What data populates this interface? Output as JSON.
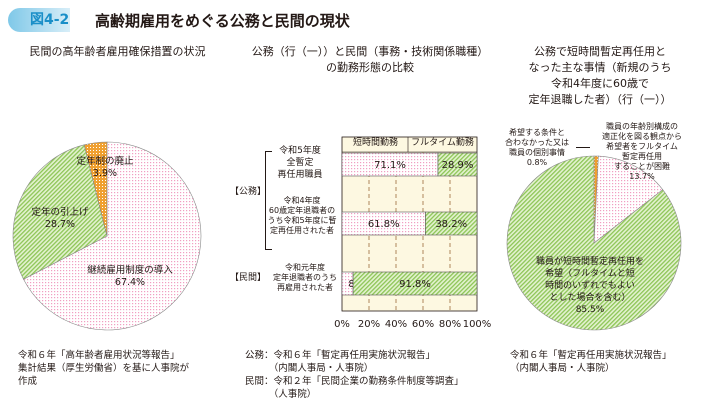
{
  "figure": {
    "badge": "図4-2",
    "title": "高齢期雇用をめぐる公務と民間の現状"
  },
  "colors": {
    "pink": "#f19ec2",
    "green": "#8dc556",
    "orange": "#f0a030",
    "bg": "#fdf8e1"
  },
  "chart_data": [
    {
      "type": "pie",
      "title": "民間の高年齢者雇用確保措置の状況",
      "slices": [
        {
          "label": "継続雇用制度の導入",
          "value": 67.4,
          "value_label": "67.4%"
        },
        {
          "label": "定年の引上げ",
          "value": 28.7,
          "value_label": "28.7%"
        },
        {
          "label": "定年制の廃止",
          "value": 3.9,
          "value_label": "3.9%"
        }
      ],
      "source": "令和６年「高年齢者雇用状況等報告」\n集計結果（厚生労働省）を基に人事院が\n作成"
    },
    {
      "type": "bar",
      "stacked": true,
      "orientation": "horizontal",
      "title_line1": "公務（行（一））と民間（事務・技術関係職種）",
      "title_line2": "の勤務形態の比較",
      "series_names": [
        "短時間勤務",
        "フルタイム勤務"
      ],
      "groups": [
        {
          "label": "【公務】"
        },
        {
          "label": "【民間】"
        }
      ],
      "categories": [
        "令和5年度\n全暫定\n再任用職員",
        "令和4年度\n60歳定年退職者の\nうち令和5年度に暫\n定再任用された者",
        "令和元年度\n定年退職者のうち\n再雇用された者"
      ],
      "series": [
        {
          "name": "短時間勤務",
          "values": [
            71.1,
            61.8,
            8.2
          ],
          "labels": [
            "71.1%",
            "61.8%",
            "8.2%"
          ]
        },
        {
          "name": "フルタイム勤務",
          "values": [
            28.9,
            38.2,
            91.8
          ],
          "labels": [
            "28.9%",
            "38.2%",
            "91.8%"
          ]
        }
      ],
      "xlim": [
        0,
        100
      ],
      "xticks": [
        "0%",
        "20%",
        "40%",
        "60%",
        "80%",
        "100%"
      ],
      "grid": "vertical dashed",
      "source": "公務：令和６年「暫定再任用実施状況報告」\n　　　（内閣人事局・人事院）\n民間：令和２年「民間企業の勤務条件制度等調査」\n　　　（人事院）"
    },
    {
      "type": "pie",
      "title": "公務で短時間暫定再任用と\nなった主な事情（新規のうち\n令和4年度に60歳で\n定年退職した者）（行（一））",
      "slices": [
        {
          "label": "希望する条件と\n合わなかった又は\n職員の個別事情",
          "value": 0.8,
          "value_label": "0.8%"
        },
        {
          "label": "職員の年齢別構成の\n適正化を図る観点から\n希望者をフルタイム\n暫定再任用\nすることが困難",
          "value": 13.7,
          "value_label": "13.7%"
        },
        {
          "label": "職員が短時間暫定再任用を\n希望（フルタイムと短\n時間のいずれでもよい\nとした場合を含む）",
          "value": 85.5,
          "value_label": "85.5%"
        }
      ],
      "source": "令和６年「暫定再任用実施状況報告」\n（内閣人事局・人事院）"
    }
  ]
}
